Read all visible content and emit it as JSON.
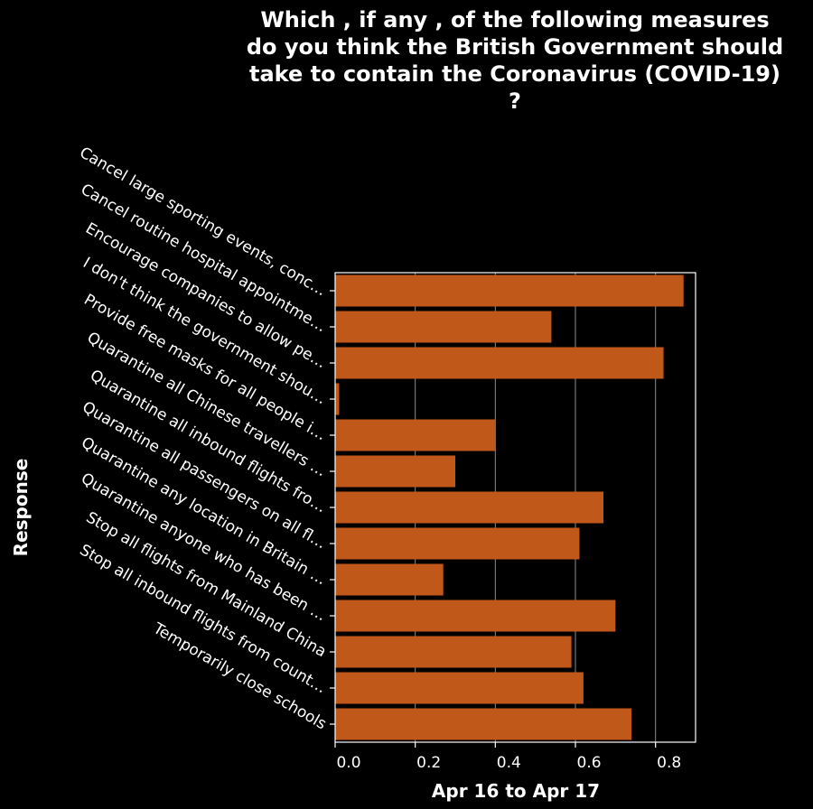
{
  "chart_data": {
    "type": "bar",
    "orientation": "horizontal",
    "title_lines": [
      "Which , if any , of the following measures",
      "do you think the British Government should",
      "take to contain the Coronavirus (COVID-19)",
      "?"
    ],
    "xlabel": "Apr 16 to Apr 17",
    "ylabel": "Response",
    "xlim": [
      0,
      0.9
    ],
    "xticks": [
      "0.0",
      "0.2",
      "0.4",
      "0.6",
      "0.8"
    ],
    "grid": true,
    "categories": [
      "Cancel large sporting events, conc…",
      "Cancel routine hospital appointme…",
      "Encourage companies to allow pe…",
      "I don't think the government shou…",
      "Provide free masks for all people i…",
      "Quarantine all Chinese travellers …",
      "Quarantine all inbound flights fro…",
      "Quarantine all passengers on all fl…",
      "Quarantine any location in Britain …",
      "Quarantine anyone who has been …",
      "Stop all flights from Mainland China",
      "Stop all inbound flights from count…",
      "Temporarily close schools"
    ],
    "values": [
      0.87,
      0.54,
      0.82,
      0.01,
      0.4,
      0.3,
      0.67,
      0.61,
      0.27,
      0.7,
      0.59,
      0.62,
      0.74
    ],
    "colors": {
      "bar": "#c0581a",
      "background": "#000000",
      "grid": "#8c8c8c",
      "text": "#ffffff"
    }
  }
}
